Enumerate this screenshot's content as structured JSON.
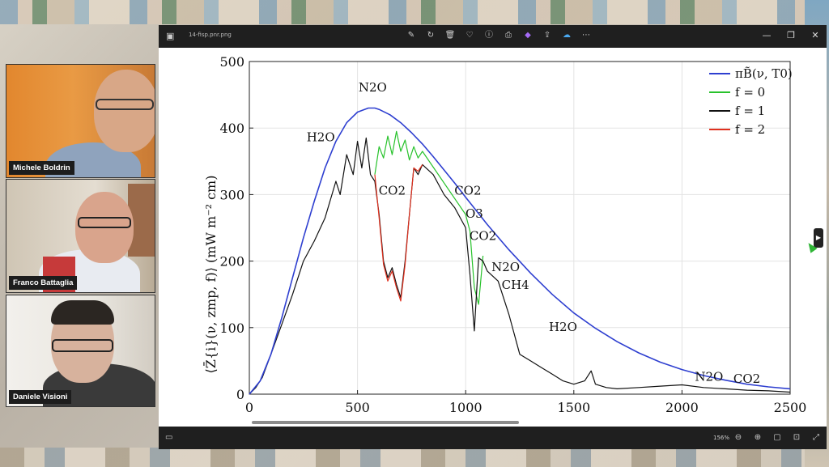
{
  "participants": [
    {
      "name": "Michele Boldrin"
    },
    {
      "name": "Franco Battaglia"
    },
    {
      "name": "Daniele Visioni"
    }
  ],
  "viewer": {
    "filename": "14-fisp.pnr.png",
    "zoom": "156%"
  },
  "colors": {
    "planck": "#2e3fd0",
    "f0": "#27c22b",
    "f1": "#111111",
    "f2": "#e0301e"
  },
  "chart_data": {
    "type": "line",
    "xlabel": "",
    "ylabel": "⟨Z̄{i}(ν, zmp, f)⟩  (mW m⁻² cm)",
    "xlim": [
      0,
      2500
    ],
    "ylim": [
      0,
      500
    ],
    "xticks": [
      "0",
      "500",
      "1000",
      "1500",
      "2000",
      "2500"
    ],
    "yticks": [
      "0",
      "100",
      "200",
      "300",
      "400",
      "500"
    ],
    "grid": true,
    "legend_position": "top-right",
    "legend": [
      "πB̃(ν, T0)",
      "f = 0",
      "f = 1",
      "f = 2"
    ],
    "series": [
      {
        "name": "πB̃(ν, T0)",
        "x": [
          0,
          50,
          100,
          150,
          200,
          250,
          300,
          350,
          400,
          450,
          500,
          550,
          580,
          600,
          650,
          700,
          750,
          800,
          850,
          900,
          950,
          1000,
          1100,
          1200,
          1300,
          1400,
          1500,
          1600,
          1700,
          1800,
          1900,
          2000,
          2100,
          2200,
          2300,
          2400,
          2500
        ],
        "y": [
          0,
          20,
          60,
          115,
          175,
          235,
          290,
          340,
          380,
          408,
          424,
          430,
          430,
          428,
          420,
          408,
          393,
          376,
          357,
          337,
          317,
          296,
          255,
          217,
          182,
          150,
          122,
          99,
          79,
          62,
          48,
          37,
          28,
          21,
          15,
          11,
          8
        ]
      },
      {
        "name": "f = 0",
        "x": [
          580,
          600,
          620,
          640,
          660,
          680,
          700,
          720,
          740,
          760,
          780,
          800,
          1000,
          1020,
          1040,
          1060,
          1080
        ],
        "y": [
          330,
          372,
          355,
          388,
          360,
          395,
          365,
          382,
          352,
          372,
          355,
          365,
          270,
          245,
          160,
          135,
          208
        ]
      },
      {
        "name": "f = 1",
        "x": [
          0,
          30,
          60,
          100,
          150,
          200,
          250,
          300,
          350,
          400,
          420,
          450,
          480,
          500,
          520,
          540,
          560,
          580,
          600,
          620,
          640,
          660,
          680,
          700,
          720,
          740,
          760,
          780,
          800,
          850,
          900,
          950,
          1000,
          1020,
          1040,
          1060,
          1080,
          1100,
          1150,
          1200,
          1250,
          1300,
          1350,
          1400,
          1450,
          1500,
          1550,
          1580,
          1600,
          1650,
          1700,
          1800,
          1900,
          2000,
          2100,
          2200,
          2300,
          2400,
          2500
        ],
        "y": [
          0,
          10,
          25,
          60,
          105,
          150,
          200,
          230,
          265,
          320,
          300,
          360,
          330,
          380,
          340,
          385,
          330,
          320,
          270,
          200,
          175,
          190,
          165,
          145,
          200,
          270,
          340,
          330,
          345,
          330,
          300,
          280,
          250,
          180,
          95,
          205,
          200,
          185,
          170,
          120,
          60,
          50,
          40,
          30,
          20,
          15,
          20,
          35,
          15,
          10,
          8,
          10,
          12,
          14,
          10,
          8,
          6,
          5,
          3
        ]
      },
      {
        "name": "f = 2",
        "x": [
          580,
          600,
          620,
          640,
          660,
          680,
          700,
          720,
          740,
          760,
          780,
          800
        ],
        "y": [
          330,
          265,
          195,
          170,
          185,
          160,
          140,
          195,
          270,
          340,
          335,
          345
        ]
      }
    ],
    "annotations": [
      {
        "text": "N2O",
        "x": 570,
        "y": 455
      },
      {
        "text": "H2O",
        "x": 330,
        "y": 380
      },
      {
        "text": "CO2",
        "x": 660,
        "y": 300
      },
      {
        "text": "CO2",
        "x": 1010,
        "y": 300
      },
      {
        "text": "O3",
        "x": 1040,
        "y": 265
      },
      {
        "text": "CO2",
        "x": 1080,
        "y": 232
      },
      {
        "text": "N2O",
        "x": 1185,
        "y": 185
      },
      {
        "text": "CH4",
        "x": 1230,
        "y": 158
      },
      {
        "text": "H2O",
        "x": 1450,
        "y": 95
      },
      {
        "text": "N2O",
        "x": 2125,
        "y": 20
      },
      {
        "text": "CO2",
        "x": 2300,
        "y": 17
      }
    ]
  }
}
